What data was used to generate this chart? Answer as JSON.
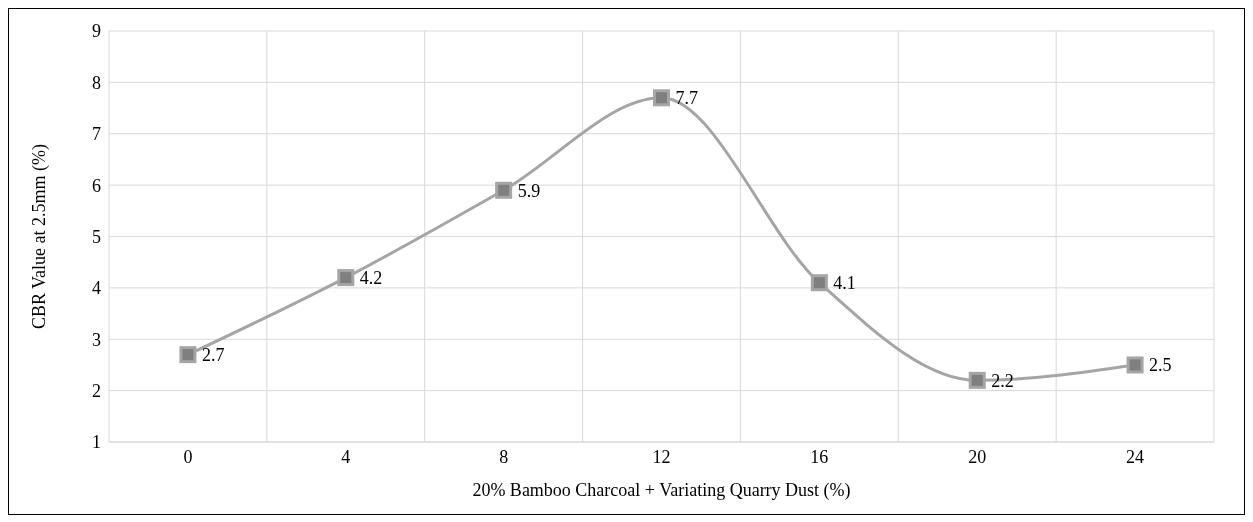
{
  "chart_data": {
    "type": "line",
    "xlabel": "20% Bamboo Charcoal + Variating Quarry Dust (%)",
    "ylabel": "CBR Value at 2.5mm (%)",
    "categories": [
      "0",
      "4",
      "8",
      "12",
      "16",
      "20",
      "24"
    ],
    "series": [
      {
        "color": "#a5a5a5",
        "values": [
          2.7,
          4.2,
          5.9,
          7.7,
          4.1,
          2.2,
          2.5
        ]
      }
    ],
    "ylim": [
      1,
      9
    ],
    "yticks": [
      1,
      2,
      3,
      4,
      5,
      6,
      7,
      8,
      9
    ],
    "grid": true,
    "marker": "square",
    "data_labels": true
  }
}
